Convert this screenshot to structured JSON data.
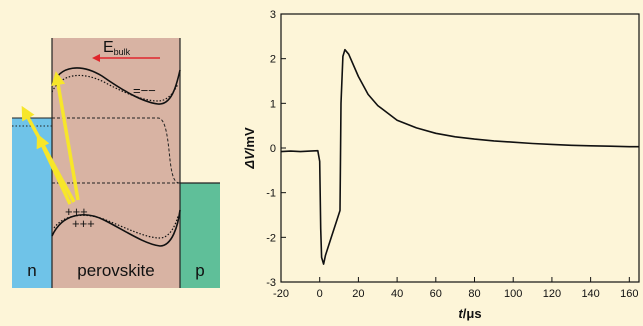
{
  "colors": {
    "background": "#fdf5d8",
    "n_region": "#6fc3e8",
    "perovskite_region": "#d8b3a3",
    "p_region": "#5fbf99",
    "field_arrow": "#e0262c",
    "carrier_arrow": "#f7e62a",
    "trace": "#111111"
  },
  "band_diagram": {
    "n_label": "n",
    "perovskite_label": "perovskite",
    "p_label": "p",
    "field_label_main": "E",
    "field_label_sub": "bulk",
    "electron_marks": "=−−",
    "hole_marks": "+++\n+++"
  },
  "chart_data": {
    "type": "line",
    "title": "",
    "xlabel_symbol": "t",
    "xlabel_unit": "/μs",
    "ylabel_symbol": "ΔV",
    "ylabel_unit": "/mV",
    "xlim": [
      -20,
      165
    ],
    "ylim": [
      -3,
      3
    ],
    "xticks": [
      -20,
      0,
      20,
      40,
      60,
      80,
      100,
      120,
      140,
      160
    ],
    "yticks": [
      -3,
      -2,
      -1,
      0,
      1,
      2,
      3
    ],
    "series": [
      {
        "x": [
          -20,
          -15,
          -10,
          -5,
          -1,
          0,
          0.5,
          1,
          2,
          3,
          6,
          9,
          10.5,
          11,
          12,
          13,
          15,
          20,
          25,
          30,
          40,
          50,
          60,
          70,
          80,
          90,
          100,
          110,
          120,
          130,
          140,
          150,
          160,
          165
        ],
        "y": [
          -0.08,
          -0.07,
          -0.08,
          -0.07,
          -0.06,
          -0.3,
          -1.8,
          -2.45,
          -2.6,
          -2.4,
          -2.0,
          -1.6,
          -1.4,
          1.0,
          2.05,
          2.2,
          2.1,
          1.6,
          1.2,
          0.95,
          0.62,
          0.45,
          0.33,
          0.25,
          0.2,
          0.16,
          0.13,
          0.1,
          0.08,
          0.06,
          0.05,
          0.04,
          0.03,
          0.03
        ]
      }
    ]
  }
}
